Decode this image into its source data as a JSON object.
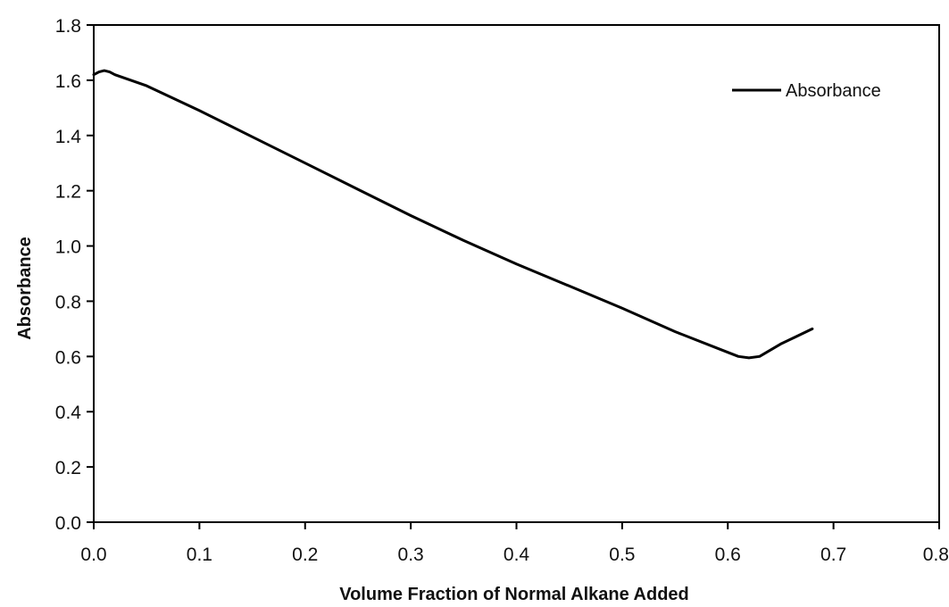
{
  "chart_data": {
    "type": "line",
    "title": "",
    "xlabel": "Volume Fraction of Normal Alkane Added",
    "ylabel": "Absorbance",
    "xlim": [
      0.0,
      0.8
    ],
    "ylim": [
      0.0,
      1.8
    ],
    "x_ticks": [
      "0.0",
      "0.1",
      "0.2",
      "0.3",
      "0.4",
      "0.5",
      "0.6",
      "0.7",
      "0.8"
    ],
    "y_ticks": [
      "0.0",
      "0.2",
      "0.4",
      "0.6",
      "0.8",
      "1.0",
      "1.2",
      "1.4",
      "1.6",
      "1.8"
    ],
    "grid": false,
    "legend_position": "top-right",
    "series": [
      {
        "name": "Absorbance",
        "color": "#000000",
        "x": [
          0.0,
          0.005,
          0.01,
          0.015,
          0.02,
          0.05,
          0.1,
          0.15,
          0.2,
          0.25,
          0.3,
          0.35,
          0.4,
          0.45,
          0.5,
          0.55,
          0.6,
          0.61,
          0.62,
          0.63,
          0.65,
          0.68
        ],
        "y": [
          1.62,
          1.63,
          1.635,
          1.63,
          1.62,
          1.58,
          1.49,
          1.395,
          1.3,
          1.205,
          1.11,
          1.02,
          0.935,
          0.855,
          0.775,
          0.69,
          0.615,
          0.6,
          0.595,
          0.6,
          0.645,
          0.7
        ]
      }
    ]
  }
}
